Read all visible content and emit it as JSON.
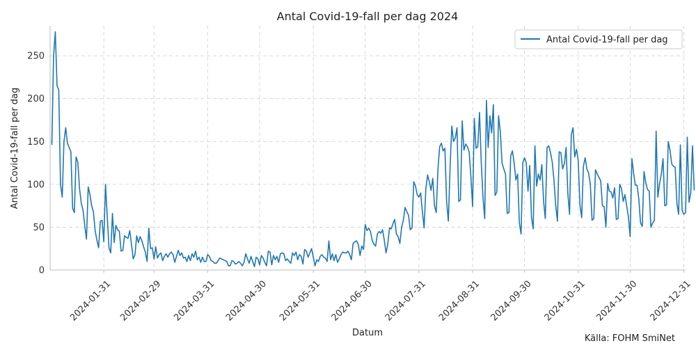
{
  "chart_data": {
    "type": "line",
    "title": "Antal Covid-19-fall per dag 2024",
    "xlabel": "Datum",
    "ylabel": "Antal Covid-19-fall per dag",
    "source": "Källa: FOHM SmiNet",
    "legend": "top-right",
    "grid": true,
    "color": "#1f77b4",
    "x_range": [
      "2023-12-31",
      "2025-01-01"
    ],
    "ylim": [
      0,
      285
    ],
    "yticks": [
      0,
      50,
      100,
      150,
      200,
      250
    ],
    "xticks": [
      "2024-01-31",
      "2024-02-29",
      "2024-03-31",
      "2024-04-30",
      "2024-05-31",
      "2024-06-30",
      "2024-07-31",
      "2024-08-31",
      "2024-09-30",
      "2024-10-31",
      "2024-11-30",
      "2024-12-31"
    ],
    "series": [
      {
        "name": "Antal Covid-19-fall per dag",
        "start_date": "2024-01-01",
        "values": [
          146,
          250,
          278,
          215,
          210,
          100,
          85,
          150,
          166,
          148,
          143,
          138,
          72,
          67,
          132,
          126,
          95,
          78,
          70,
          52,
          36,
          97,
          88,
          75,
          68,
          46,
          35,
          26,
          57,
          58,
          33,
          100,
          62,
          26,
          20,
          66,
          32,
          52,
          47,
          45,
          22,
          23,
          40,
          38,
          37,
          46,
          30,
          13,
          18,
          40,
          32,
          39,
          34,
          27,
          21,
          10,
          49,
          25,
          26,
          13,
          27,
          14,
          18,
          20,
          11,
          16,
          19,
          15,
          19,
          21,
          18,
          9,
          16,
          23,
          17,
          20,
          14,
          15,
          10,
          17,
          11,
          19,
          15,
          22,
          12,
          15,
          9,
          15,
          10,
          10,
          18,
          16,
          11,
          10,
          8,
          8,
          11,
          14,
          13,
          12,
          11,
          10,
          5,
          5,
          11,
          10,
          7,
          8,
          10,
          8,
          5,
          9,
          19,
          13,
          8,
          16,
          10,
          4,
          15,
          13,
          6,
          17,
          14,
          9,
          5,
          22,
          21,
          6,
          17,
          12,
          16,
          9,
          19,
          20,
          19,
          11,
          13,
          10,
          8,
          20,
          17,
          21,
          12,
          18,
          16,
          7,
          24,
          22,
          15,
          20,
          25,
          15,
          5,
          12,
          10,
          16,
          18,
          15,
          14,
          10,
          34,
          12,
          19,
          11,
          18,
          9,
          13,
          18,
          21,
          20,
          20,
          22,
          18,
          12,
          31,
          33,
          34,
          30,
          17,
          28,
          24,
          53,
          46,
          49,
          45,
          35,
          30,
          28,
          42,
          45,
          43,
          47,
          35,
          20,
          30,
          49,
          48,
          54,
          59,
          42,
          39,
          31,
          50,
          58,
          73,
          68,
          64,
          47,
          49,
          103,
          98,
          88,
          85,
          90,
          68,
          49,
          95,
          111,
          103,
          93,
          107,
          75,
          67,
          118,
          144,
          148,
          139,
          142,
          80,
          57,
          120,
          168,
          150,
          154,
          166,
          80,
          82,
          174,
          140,
          147,
          144,
          138,
          110,
          74,
          177,
          142,
          144,
          184,
          126,
          85,
          60,
          198,
          143,
          180,
          160,
          193,
          87,
          91,
          180,
          162,
          125,
          118,
          112,
          66,
          67,
          133,
          139,
          125,
          105,
          112,
          55,
          42,
          125,
          131,
          125,
          92,
          122,
          62,
          48,
          145,
          98,
          112,
          105,
          123,
          80,
          60,
          143,
          145,
          137,
          126,
          105,
          75,
          57,
          138,
          137,
          118,
          124,
          143,
          90,
          65,
          158,
          166,
          132,
          141,
          128,
          76,
          61,
          121,
          131,
          118,
          113,
          100,
          58,
          60,
          117,
          112,
          108,
          104,
          75,
          74,
          50,
          101,
          92,
          91,
          84,
          96,
          59,
          60,
          100,
          95,
          80,
          88,
          75,
          62,
          39,
          130,
          113,
          99,
          99,
          83,
          55,
          51,
          115,
          102,
          94,
          92,
          50,
          55,
          58,
          162,
          85,
          101,
          112,
          130,
          75,
          76,
          150,
          140,
          124,
          121,
          120,
          78,
          65,
          146,
          70,
          65,
          67,
          155,
          79,
          90,
          145,
          93
        ]
      }
    ]
  }
}
